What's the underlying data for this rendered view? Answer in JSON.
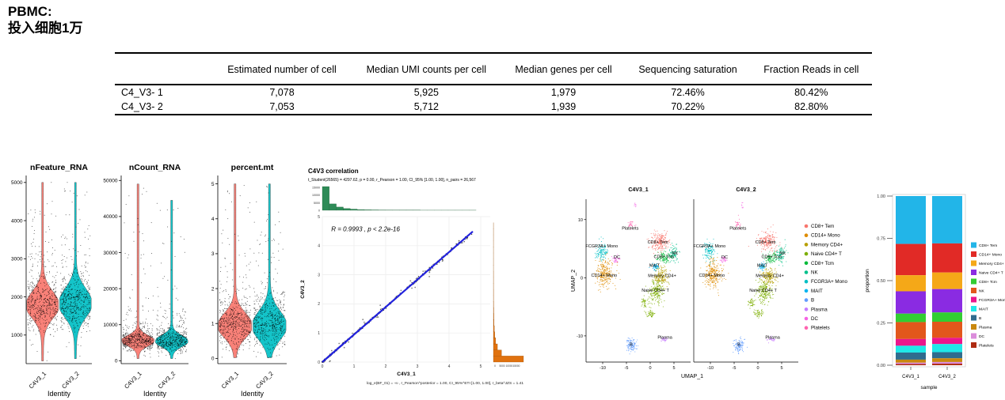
{
  "page": {
    "title_line1": "PBMC:",
    "title_line2": "投入细胞1万"
  },
  "table": {
    "columns": [
      "",
      "Estimated number of cell",
      "Median UMI counts per cell",
      "Median genes per cell",
      "Sequencing saturation",
      "Fraction Reads in cell"
    ],
    "rows": [
      [
        "C4_V3- 1",
        "7,078",
        "5,925",
        "1,979",
        "72.46%",
        "80.42%"
      ],
      [
        "C4_V3- 2",
        "7,053",
        "5,712",
        "1,939",
        "70.22%",
        "82.80%"
      ]
    ]
  },
  "chart_data": [
    {
      "id": "violin_nfeature",
      "type": "violin",
      "title": "nFeature_RNA",
      "xlabel": "Identity",
      "categories": [
        "C4V3_1",
        "C4V3_2"
      ],
      "colors": [
        "#F8766D",
        "#00BFC4"
      ],
      "ylim": [
        250,
        5100
      ],
      "yticks": [
        1000,
        2000,
        3000,
        4000,
        5000
      ],
      "violins": [
        {
          "mode": 1800,
          "sigma": 340,
          "min": 320,
          "max": 5000
        },
        {
          "mode": 1850,
          "sigma": 370,
          "min": 380,
          "max": 5000
        }
      ]
    },
    {
      "id": "violin_ncount",
      "type": "violin",
      "title": "nCount_RNA",
      "xlabel": "Identity",
      "categories": [
        "C4V3_1",
        "C4V3_2"
      ],
      "colors": [
        "#F8766D",
        "#00BFC4"
      ],
      "ylim": [
        -800,
        50500
      ],
      "yticks": [
        0,
        10000,
        20000,
        30000,
        40000,
        50000
      ],
      "violins": [
        {
          "mode": 5600,
          "sigma": 1400,
          "min": 600,
          "max": 49000
        },
        {
          "mode": 5500,
          "sigma": 1500,
          "min": 600,
          "max": 44500
        }
      ]
    },
    {
      "id": "violin_percent_mt",
      "type": "violin",
      "title": "percent.mt",
      "xlabel": "Identity",
      "categories": [
        "C4V3_1",
        "C4V3_2"
      ],
      "colors": [
        "#F8766D",
        "#00BFC4"
      ],
      "ylim": [
        -0.15,
        5.15
      ],
      "yticks": [
        0,
        1,
        2,
        3,
        4,
        5
      ],
      "violins": [
        {
          "mode": 0.95,
          "sigma": 0.34,
          "min": 0.02,
          "max": 5.0
        },
        {
          "mode": 0.95,
          "sigma": 0.4,
          "min": 0.02,
          "max": 5.0
        }
      ]
    },
    {
      "id": "correlation",
      "type": "scatter",
      "title": "C4V3 correlation",
      "subtitle": "t_Student(26565) = 4297.62, p = 0.00, r_Pearson = 1.00, CI_95% [1.00, 1.00], n_pairs = 26,567",
      "annotation": "R = 0.9993 , p < 2.2e-16",
      "caption": "log_e(BF_01) = -∞ , r_Pearson^posterior = 1.00, CI_95%^ETI [1.00, 1.00], r_beta^JZS = 1.41",
      "xlabel": "C4V3_1",
      "ylabel": "C4V3_2",
      "xlim": [
        0,
        5.3
      ],
      "ylim": [
        0,
        5
      ],
      "xticks": [
        0,
        1,
        2,
        3,
        4,
        5
      ],
      "yticks": [
        0,
        1,
        2,
        3,
        4,
        5
      ],
      "r": 0.9993,
      "slope": 0.945,
      "line_color": "#2222DD",
      "point_color": "#1a1a1a",
      "top_hist": {
        "color": "#2E8B57",
        "yticks": [
          "15000",
          "10000",
          "5000",
          "0"
        ],
        "values": [
          15500,
          4200,
          2100,
          1200,
          750,
          480,
          330,
          240,
          185,
          150,
          125,
          105,
          90,
          78,
          68,
          60,
          52,
          46,
          40,
          35,
          30,
          26,
          22,
          18
        ]
      },
      "right_hist": {
        "color": "#E0720F",
        "xticks": [
          "0",
          "5000",
          "10000",
          "15000"
        ],
        "values": [
          15500,
          4200,
          2100,
          1200,
          750,
          480,
          330,
          240,
          185,
          150,
          125,
          105,
          90,
          78,
          68,
          60,
          52,
          46,
          40,
          35,
          30,
          26,
          22,
          18
        ]
      }
    },
    {
      "id": "umap",
      "type": "umap-pair",
      "panel_titles": [
        "C4V3_1",
        "C4V3_2"
      ],
      "xlabel": "UMAP_1",
      "ylabel": "UMAP_2",
      "xlim": [
        -13.5,
        8.5
      ],
      "ylim": [
        -14.5,
        13.5
      ],
      "xticks": [
        -10,
        -5,
        0,
        5
      ],
      "yticks": [
        -10,
        0,
        10
      ],
      "clusters": [
        {
          "name": "CD8+ Tem",
          "label": "CD8+ Tem",
          "color": "#F8766D",
          "x": 2.0,
          "y": 6.2,
          "rx": 1.9,
          "ry": 1.7,
          "n": 210,
          "lx": 1.6,
          "ly": 5.9
        },
        {
          "name": "NK",
          "label": "NK",
          "color": "#00C08B",
          "x": 4.9,
          "y": 4.1,
          "rx": 1.1,
          "ry": 1.4,
          "n": 90,
          "lx": 5.2,
          "ly": 4.0
        },
        {
          "name": "CD8+ Tcm",
          "label": "CD8+ Tcm",
          "color": "#00BA38",
          "x": 2.9,
          "y": 3.4,
          "rx": 1.5,
          "ry": 0.9,
          "n": 100,
          "lx": 2.9,
          "ly": 3.4
        },
        {
          "name": "MAIT",
          "label": "MAIT",
          "color": "#00B4F0",
          "x": 1.1,
          "y": 1.9,
          "rx": 0.8,
          "ry": 0.6,
          "n": 50,
          "lx": 0.9,
          "ly": 1.9
        },
        {
          "name": "Memory CD4+",
          "label": "Memory CD4+",
          "color": "#B79F00",
          "x": 2.3,
          "y": 0.2,
          "rx": 1.6,
          "ry": 1.4,
          "n": 170,
          "lx": 2.5,
          "ly": 0.1
        },
        {
          "name": "Naive CD4+ T",
          "label": "Naive CD4+ T",
          "color": "#7CAE00",
          "x": 1.3,
          "y": -2.4,
          "rx": 1.6,
          "ry": 1.9,
          "n": 200,
          "lx": 1.1,
          "ly": -2.4
        },
        {
          "name": "naive-blob-2",
          "label": "",
          "color": "#7CAE00",
          "x": -1.3,
          "y": -4.3,
          "rx": 0.8,
          "ry": 0.8,
          "n": 40,
          "lx": 0,
          "ly": 0
        },
        {
          "name": "naive-blob-3",
          "label": "",
          "color": "#7CAE00",
          "x": 0.2,
          "y": -6.2,
          "rx": 1.0,
          "ry": 0.7,
          "n": 50,
          "lx": 0,
          "ly": 0
        },
        {
          "name": "FCGR3A+ Mono",
          "label": "FCGR3A+ Mono",
          "color": "#00BFC4",
          "x": -10.2,
          "y": 4.6,
          "rx": 1.2,
          "ry": 1.6,
          "n": 120,
          "lx": -10.2,
          "ly": 5.2
        },
        {
          "name": "DC",
          "label": "DC",
          "color": "#F564E3",
          "x": -7.2,
          "y": 3.1,
          "rx": 0.7,
          "ry": 0.6,
          "n": 35,
          "lx": -7.0,
          "ly": 3.3
        },
        {
          "name": "CD14+ Mono",
          "label": "CD14+ Mono",
          "color": "#DE8C00",
          "x": -9.6,
          "y": 0.6,
          "rx": 1.9,
          "ry": 2.3,
          "n": 260,
          "lx": -9.7,
          "ly": 0.2
        },
        {
          "name": "Platelets",
          "label": "Platelets",
          "color": "#FF64B0",
          "x": -4.2,
          "y": 9.2,
          "rx": 0.6,
          "ry": 0.8,
          "n": 26,
          "lx": -4.2,
          "ly": 8.3
        },
        {
          "name": "platelets-top",
          "label": "",
          "color": "#F564E3",
          "x": -3.2,
          "y": 12.4,
          "rx": 0.3,
          "ry": 0.5,
          "n": 7,
          "lx": 0,
          "ly": 0
        },
        {
          "name": "B",
          "label": "B",
          "color": "#619CFF",
          "x": -4.0,
          "y": -11.6,
          "rx": 1.2,
          "ry": 1.1,
          "n": 110,
          "lx": -4.0,
          "ly": -11.7
        },
        {
          "name": "Plasma",
          "label": "Plasma",
          "color": "#C77CFF",
          "x": 2.9,
          "y": -10.6,
          "rx": 0.8,
          "ry": 0.5,
          "n": 28,
          "lx": 3.1,
          "ly": -10.5
        }
      ],
      "legend": [
        {
          "label": "CD8+ Tem",
          "color": "#F8766D"
        },
        {
          "label": "CD14+ Mono",
          "color": "#DE8C00"
        },
        {
          "label": "Memory CD4+",
          "color": "#B79F00"
        },
        {
          "label": "Naive CD4+ T",
          "color": "#7CAE00"
        },
        {
          "label": "CD8+ Tcm",
          "color": "#00BA38"
        },
        {
          "label": "NK",
          "color": "#00C08B"
        },
        {
          "label": "FCGR3A+ Mono",
          "color": "#00BFC4"
        },
        {
          "label": "MAIT",
          "color": "#00B4F0"
        },
        {
          "label": "B",
          "color": "#619CFF"
        },
        {
          "label": "Plasma",
          "color": "#C77CFF"
        },
        {
          "label": "DC",
          "color": "#F564E3"
        },
        {
          "label": "Platelets",
          "color": "#FF64B0"
        }
      ]
    },
    {
      "id": "proportion_bar",
      "type": "bar",
      "stacked": true,
      "xlabel": "sample",
      "ylabel": "proportion",
      "categories": [
        "C4V3_1",
        "C4V3_2"
      ],
      "ytick_labels": [
        "0.00",
        "0.25",
        "0.50",
        "0.75",
        "1.00"
      ],
      "yticks": [
        0,
        0.25,
        0.5,
        0.75,
        1
      ],
      "series": [
        {
          "name": "CD8+ Tem",
          "color": "#22B5E8",
          "values": [
            0.283,
            0.28
          ]
        },
        {
          "name": "CD14+ Mono",
          "color": "#E12A26",
          "values": [
            0.185,
            0.172
          ]
        },
        {
          "name": "Memory CD4+",
          "color": "#F5A818",
          "values": [
            0.095,
            0.098
          ]
        },
        {
          "name": "Naive CD4+ T",
          "color": "#8A2BE2",
          "values": [
            0.132,
            0.138
          ]
        },
        {
          "name": "CD8+ Tcm",
          "color": "#32CD32",
          "values": [
            0.05,
            0.055
          ]
        },
        {
          "name": "NK",
          "color": "#E2571B",
          "values": [
            0.1,
            0.095
          ]
        },
        {
          "name": "FCGR3A+ Mono",
          "color": "#EB168C",
          "values": [
            0.04,
            0.037
          ]
        },
        {
          "name": "MAIT",
          "color": "#1FE8E8",
          "values": [
            0.04,
            0.048
          ]
        },
        {
          "name": "B",
          "color": "#2F6C8E",
          "values": [
            0.042,
            0.036
          ]
        },
        {
          "name": "Plasma",
          "color": "#C9880F",
          "values": [
            0.018,
            0.022
          ]
        },
        {
          "name": "DC",
          "color": "#DB8CDB",
          "values": [
            0.008,
            0.01
          ]
        },
        {
          "name": "Platelets",
          "color": "#AE2B12",
          "values": [
            0.007,
            0.009
          ]
        }
      ]
    }
  ]
}
